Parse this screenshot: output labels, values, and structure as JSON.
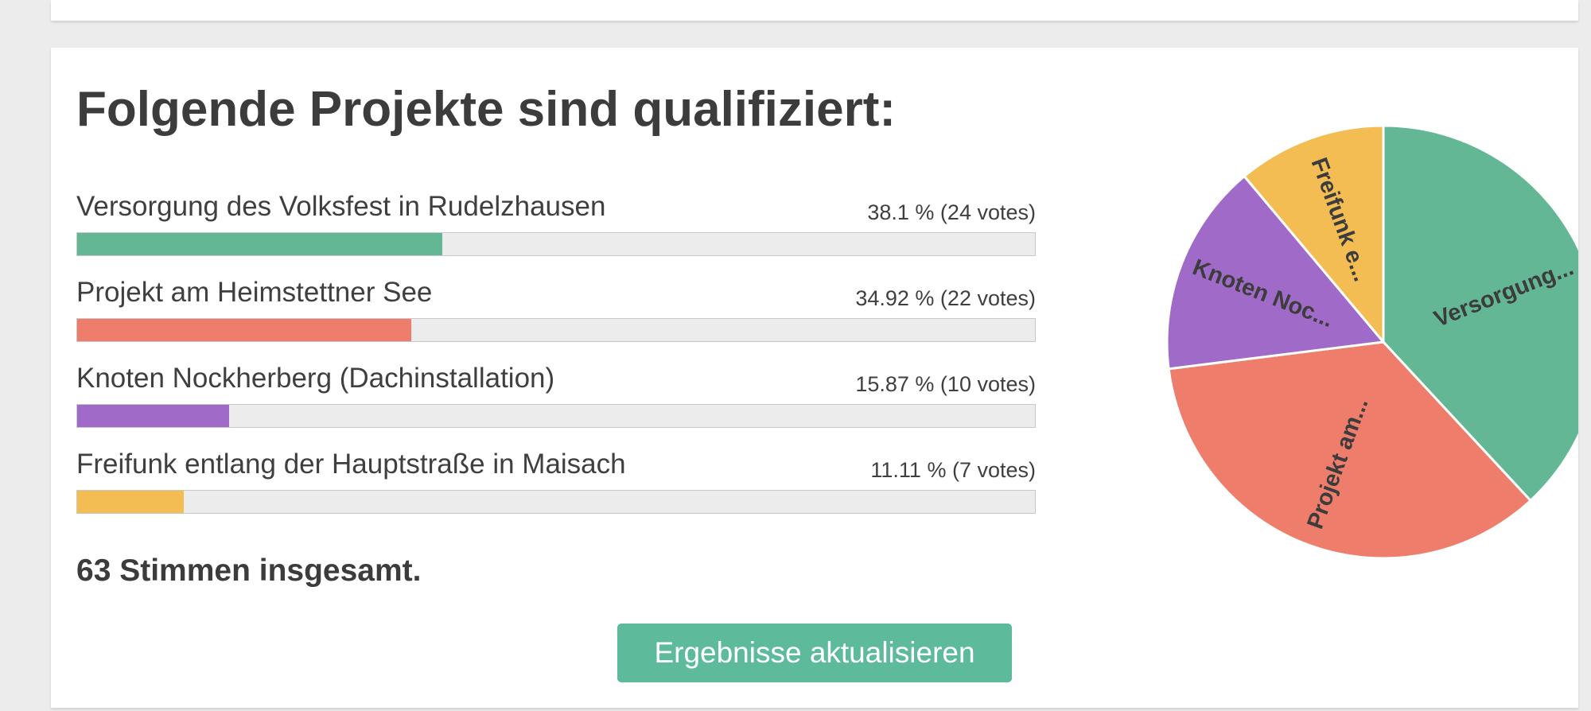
{
  "heading": "Folgende Projekte sind qualifiziert:",
  "results": [
    {
      "label": "Versorgung des Volksfest in Rudelzhausen",
      "percent_text": "38.1 % (24 votes)",
      "percent": 38.1,
      "votes": 24,
      "color": "#63b795",
      "pie_label": "Versorgung..."
    },
    {
      "label": "Projekt am Heimstettner See",
      "percent_text": "34.92 % (22 votes)",
      "percent": 34.92,
      "votes": 22,
      "color": "#ef7d6b",
      "pie_label": "Projekt am..."
    },
    {
      "label": "Knoten Nockherberg (Dachinstallation)",
      "percent_text": "15.87 % (10 votes)",
      "percent": 15.87,
      "votes": 10,
      "color": "#a06bc8",
      "pie_label": "Knoten Noc..."
    },
    {
      "label": "Freifunk entlang der Hauptstraße in Maisach",
      "percent_text": "11.11 % (7 votes)",
      "percent": 11.11,
      "votes": 7,
      "color": "#f4bd53",
      "pie_label": "Freifunk e..."
    }
  ],
  "total_text": "63 Stimmen insgesamt.",
  "refresh_button_label": "Ergebnisse aktualisieren",
  "chart_data": {
    "type": "pie",
    "categories": [
      "Versorgung...",
      "Projekt am...",
      "Knoten Noc...",
      "Freifunk e..."
    ],
    "values": [
      24,
      22,
      10,
      7
    ],
    "colors": [
      "#63b795",
      "#ef7d6b",
      "#a06bc8",
      "#f4bd53"
    ]
  }
}
